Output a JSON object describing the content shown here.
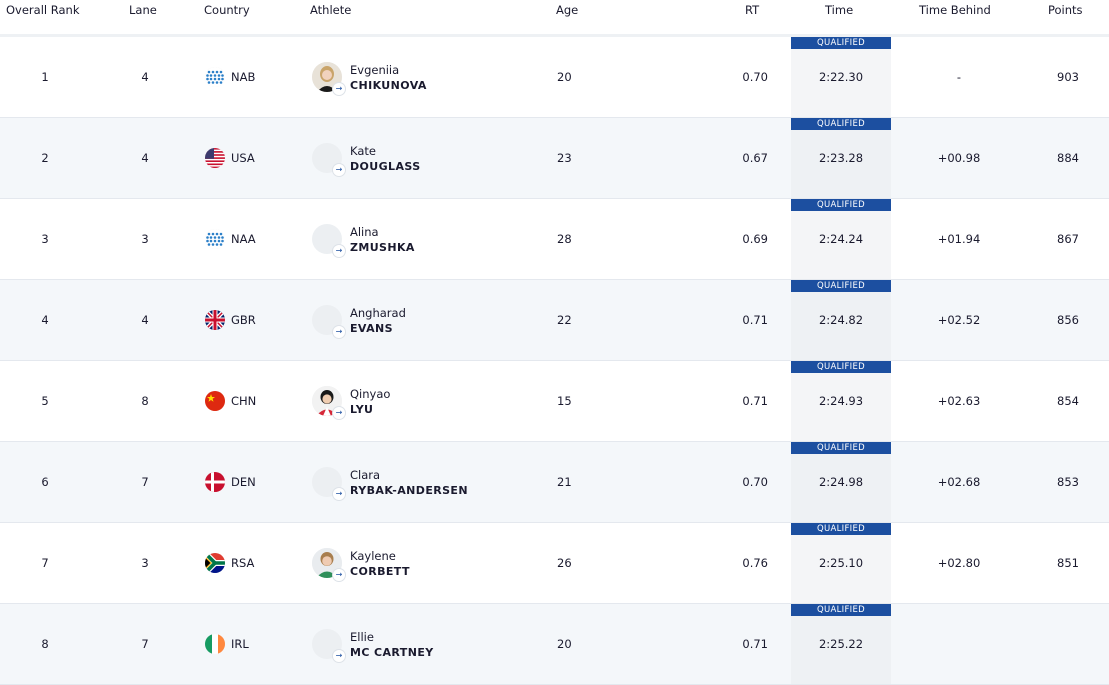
{
  "headers": {
    "rank": "Overall Rank",
    "lane": "Lane",
    "country": "Country",
    "athlete": "Athlete",
    "age": "Age",
    "rt": "RT",
    "time": "Time",
    "behind": "Time Behind",
    "points": "Points"
  },
  "qualified_label": "QUALIFIED",
  "rows": [
    {
      "rank": "1",
      "lane": "4",
      "flag": "neutral-flag-icon",
      "country": "NAB",
      "first": "Evgeniia",
      "last": "CHIKUNOVA",
      "age": "20",
      "rt": "0.70",
      "time": "2:22.30",
      "behind": "-",
      "points": "903",
      "qualified": true
    },
    {
      "rank": "2",
      "lane": "4",
      "flag": "usa-flag-icon",
      "country": "USA",
      "first": "Kate",
      "last": "DOUGLASS",
      "age": "23",
      "rt": "0.67",
      "time": "2:23.28",
      "behind": "+00.98",
      "points": "884",
      "qualified": true
    },
    {
      "rank": "3",
      "lane": "3",
      "flag": "neutral-flag-icon",
      "country": "NAA",
      "first": "Alina",
      "last": "ZMUSHKA",
      "age": "28",
      "rt": "0.69",
      "time": "2:24.24",
      "behind": "+01.94",
      "points": "867",
      "qualified": true
    },
    {
      "rank": "4",
      "lane": "4",
      "flag": "gbr-flag-icon",
      "country": "GBR",
      "first": "Angharad",
      "last": "EVANS",
      "age": "22",
      "rt": "0.71",
      "time": "2:24.82",
      "behind": "+02.52",
      "points": "856",
      "qualified": true
    },
    {
      "rank": "5",
      "lane": "8",
      "flag": "chn-flag-icon",
      "country": "CHN",
      "first": "Qinyao",
      "last": "LYU",
      "age": "15",
      "rt": "0.71",
      "time": "2:24.93",
      "behind": "+02.63",
      "points": "854",
      "qualified": true
    },
    {
      "rank": "6",
      "lane": "7",
      "flag": "den-flag-icon",
      "country": "DEN",
      "first": "Clara",
      "last": "RYBAK-ANDERSEN",
      "age": "21",
      "rt": "0.70",
      "time": "2:24.98",
      "behind": "+02.68",
      "points": "853",
      "qualified": true
    },
    {
      "rank": "7",
      "lane": "3",
      "flag": "rsa-flag-icon",
      "country": "RSA",
      "first": "Kaylene",
      "last": "CORBETT",
      "age": "26",
      "rt": "0.76",
      "time": "2:25.10",
      "behind": "+02.80",
      "points": "851",
      "qualified": true
    },
    {
      "rank": "8",
      "lane": "7",
      "flag": "irl-flag-icon",
      "country": "IRL",
      "first": "Ellie",
      "last": "MC CARTNEY",
      "age": "20",
      "rt": "0.71",
      "time": "2:25.22",
      "behind": "",
      "points": "",
      "qualified": true
    }
  ],
  "colors": {
    "qualified_bg": "#1c4fa0",
    "row_alt_bg": "#f4f7fa",
    "time_cell_bg": "#f4f5f7"
  }
}
